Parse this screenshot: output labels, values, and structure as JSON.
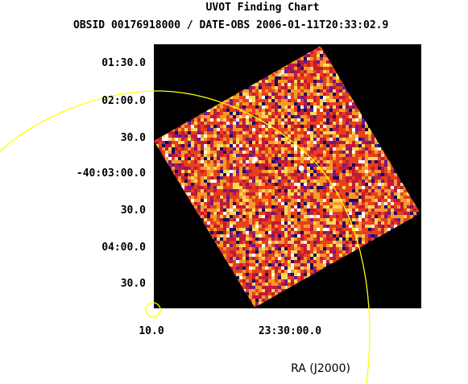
{
  "chart_data": {
    "type": "heatmap",
    "title": "UVOT Finding Chart",
    "subtitle": "OBSID 00176918000 / DATE-OBS 2006-01-11T20:33:02.9",
    "xlabel": "RA (J2000)",
    "ylabel": "",
    "xticks": [
      "10.0",
      "23:30:00.0"
    ],
    "yticks": [
      "01:30.0",
      "02:00.0",
      "30.0",
      "-40:03:00.0",
      "30.0",
      "04:00.0",
      "30.0"
    ],
    "grid": false,
    "colormap": [
      "#1a0a5e",
      "#6a1a8a",
      "#c01a3a",
      "#e8401a",
      "#f59a2a",
      "#f8d85a",
      "#ffffff"
    ],
    "overlay_color": "#ffff00"
  }
}
